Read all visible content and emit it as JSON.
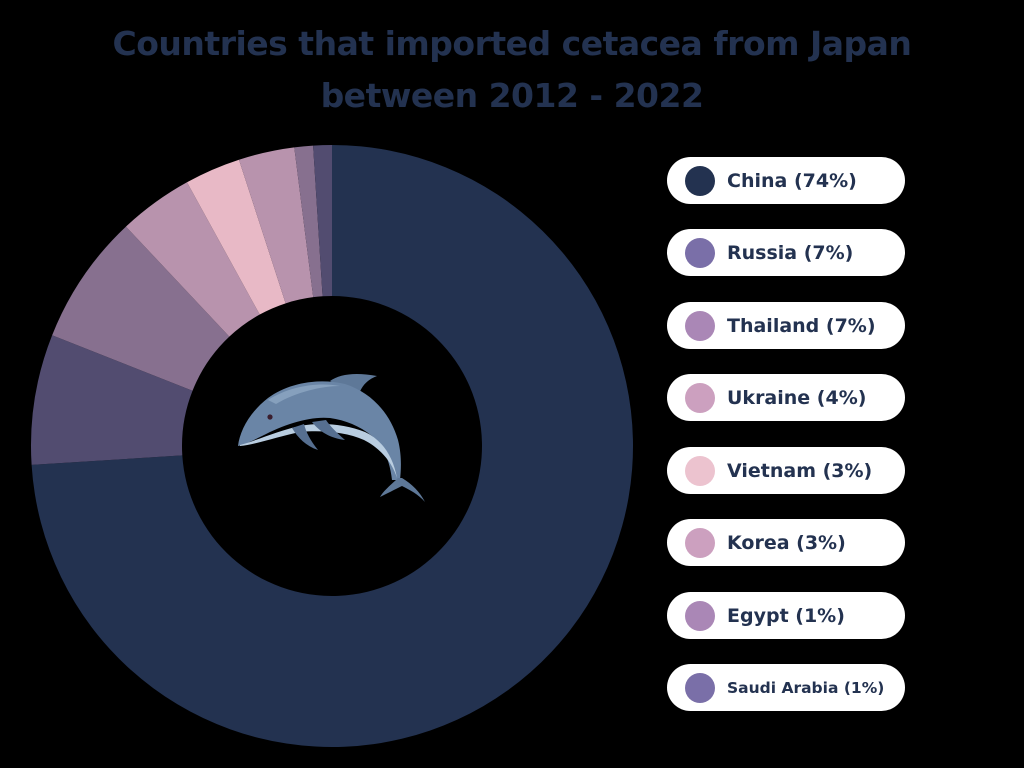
{
  "title": {
    "line1": "Countries that imported cetacea from Japan",
    "line2": "between 2012 - 2022"
  },
  "center_icon": "dolphin-icon",
  "colors": {
    "title": "#233250",
    "background": "#000000",
    "legend_bg": "#ffffff"
  },
  "legend": [
    {
      "label": "China (74%)",
      "dot": "#233250"
    },
    {
      "label": "Russia (7%)",
      "dot": "#7a6fa8"
    },
    {
      "label": "Thailand (7%)",
      "dot": "#aa87b6"
    },
    {
      "label": "Ukraine (4%)",
      "dot": "#cca0bf"
    },
    {
      "label": "Vietnam (3%)",
      "dot": "#ecc3cf"
    },
    {
      "label": "Korea (3%)",
      "dot": "#cca0bf"
    },
    {
      "label": "Egypt (1%)",
      "dot": "#aa87b6"
    },
    {
      "label": "Saudi Arabia (1%)",
      "dot": "#7a6fa8"
    }
  ],
  "chart_data": {
    "type": "pie",
    "subtype": "donut",
    "title": "Countries that imported cetacea from Japan between 2012 - 2022",
    "categories": [
      "China",
      "Russia",
      "Thailand",
      "Ukraine",
      "Vietnam",
      "Korea",
      "Egypt",
      "Saudi Arabia"
    ],
    "values": [
      74,
      7,
      7,
      4,
      3,
      3,
      1,
      1
    ],
    "unit": "%",
    "slice_colors": [
      "#233250",
      "#524c70",
      "#87708f",
      "#b893ad",
      "#e8b9c6",
      "#b893ad",
      "#87708f",
      "#524c70"
    ],
    "start_angle": "12 o'clock",
    "direction": "clockwise",
    "legend_position": "right",
    "center_image": "dolphin"
  }
}
